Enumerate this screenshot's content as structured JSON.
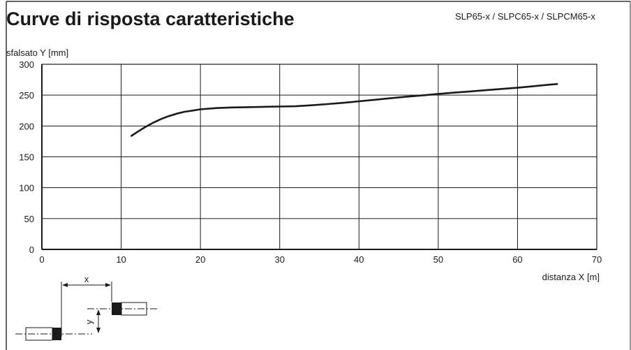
{
  "header": {
    "title": "Curve di risposta caratteristiche",
    "models": "SLP65-x / SLPC65-x / SLPCM65-x"
  },
  "chart_data": {
    "type": "line",
    "ylabel": "sfalsato Y [mm]",
    "xlabel": "distanza X [m]",
    "xlim": [
      0,
      70
    ],
    "ylim": [
      0,
      300
    ],
    "xticks": [
      0,
      10,
      20,
      30,
      40,
      50,
      60,
      70
    ],
    "yticks": [
      0,
      50,
      100,
      150,
      200,
      250,
      300
    ],
    "grid": true,
    "series": [
      {
        "x": [
          11.3,
          12,
          13,
          14,
          15,
          16,
          17,
          18,
          19,
          20,
          22,
          24,
          26,
          28,
          30,
          32,
          34,
          36,
          38,
          40,
          42,
          44,
          46,
          48,
          50,
          52,
          54,
          56,
          58,
          60,
          62,
          64,
          65
        ],
        "y": [
          184,
          190,
          198,
          205,
          211,
          216,
          220,
          223,
          225,
          227,
          229,
          230,
          230.5,
          231,
          231.5,
          232,
          233.5,
          235.5,
          237.5,
          240,
          242.5,
          245,
          247.5,
          249.5,
          252,
          254,
          256,
          258,
          260,
          262,
          264.5,
          267,
          268
        ]
      }
    ]
  },
  "diagram": {
    "x_label": "x",
    "y_label": "y"
  }
}
